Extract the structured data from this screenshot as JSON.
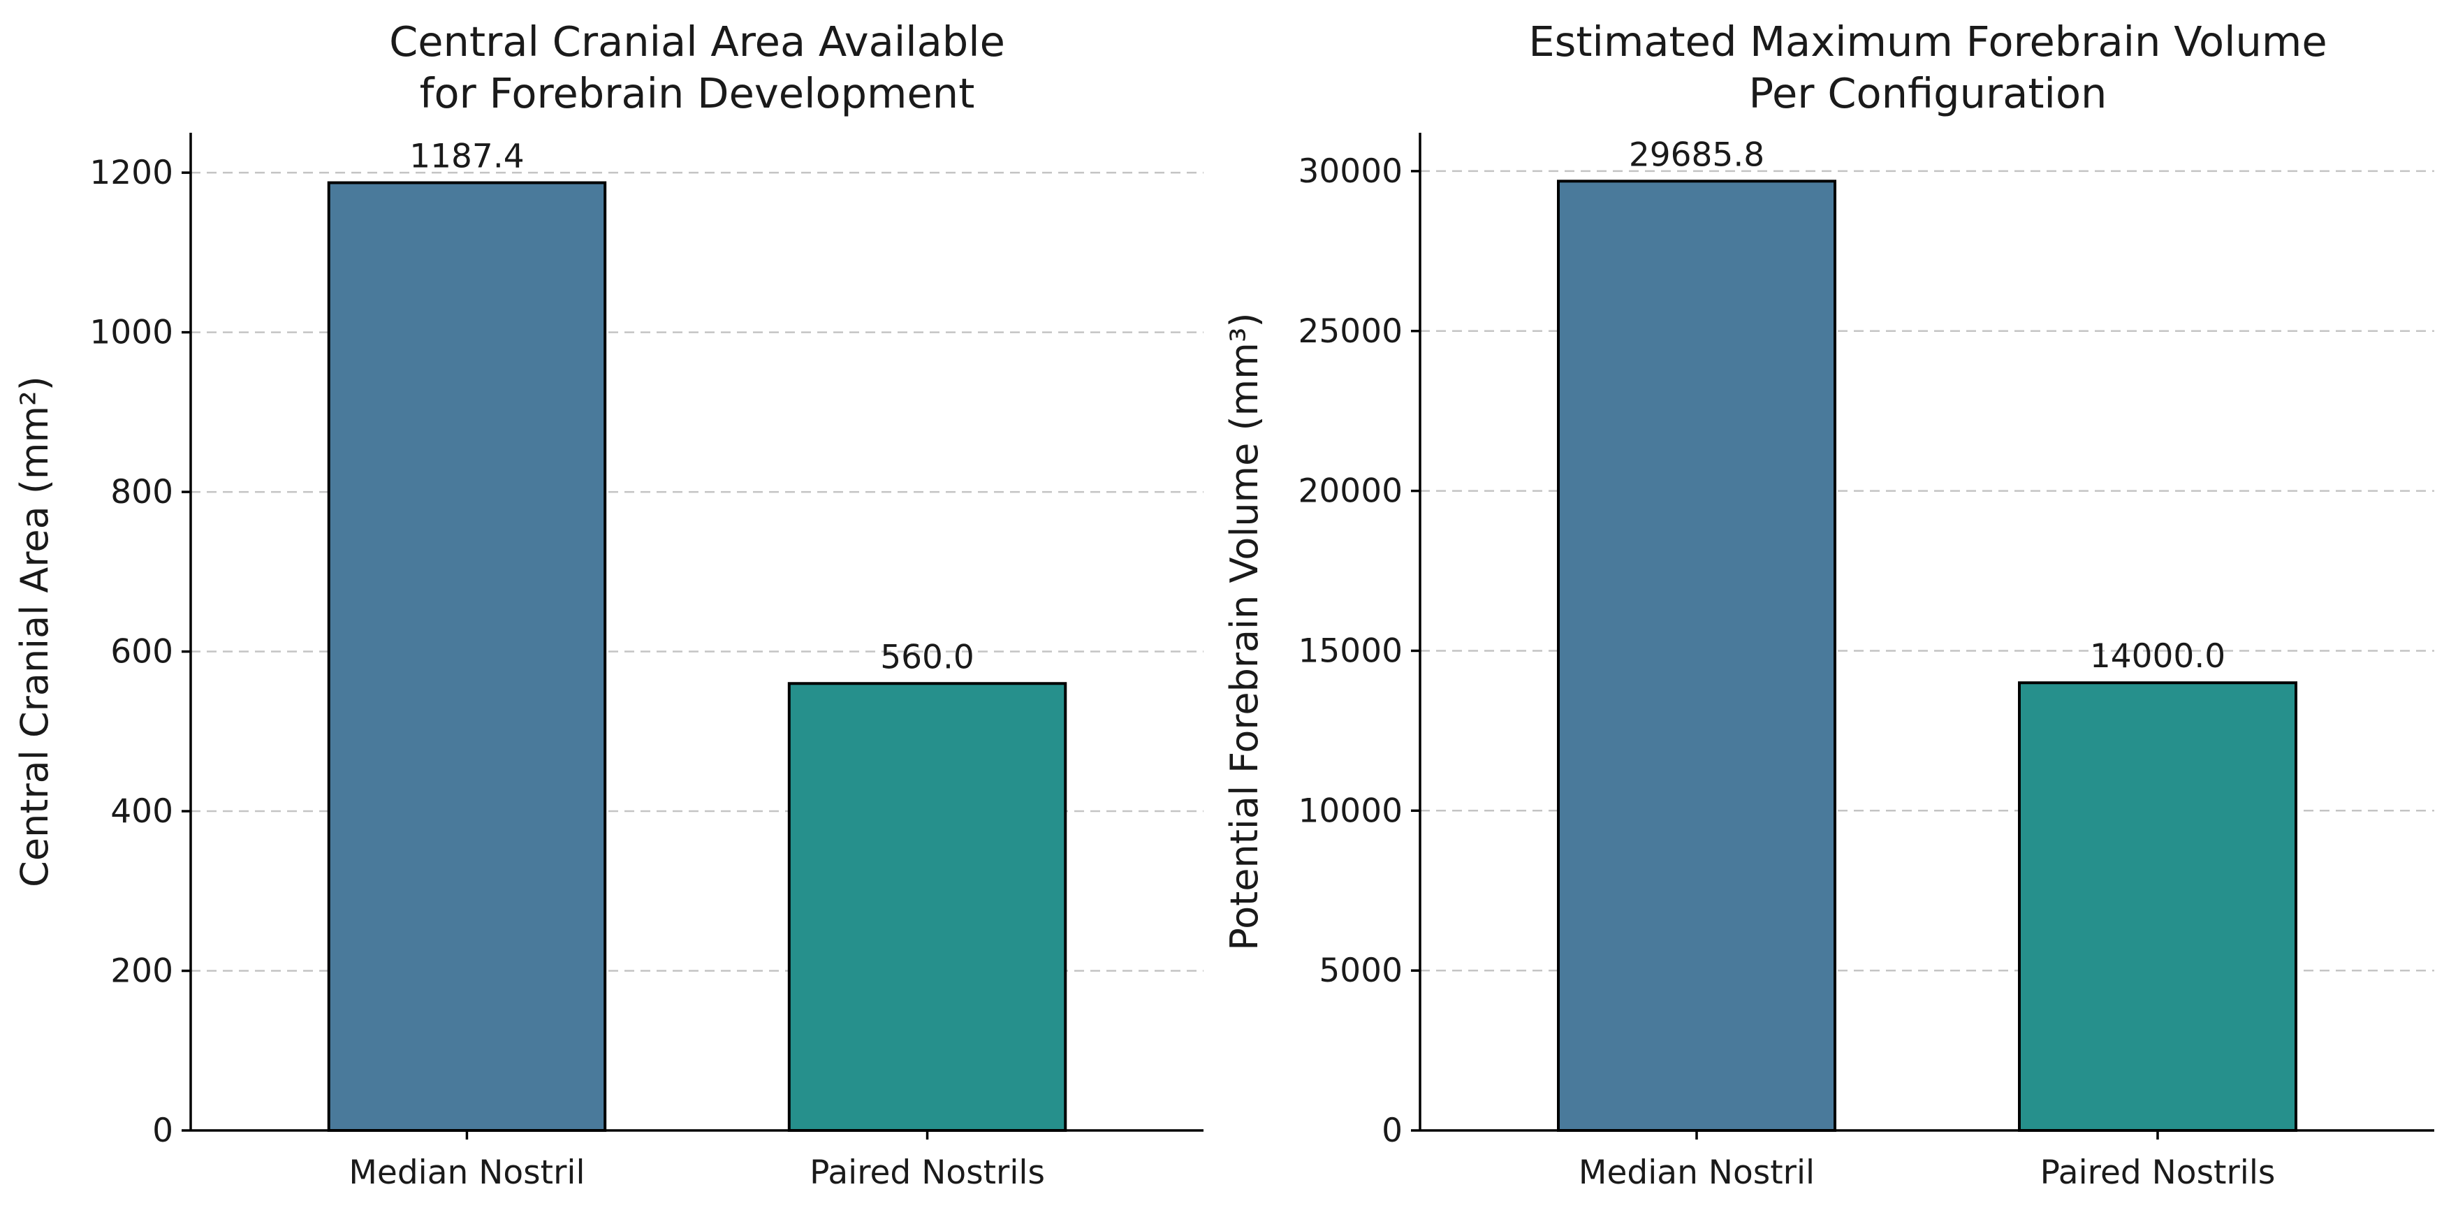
{
  "chart_data": [
    {
      "type": "bar",
      "title": [
        "Central Cranial Area Available",
        "for Forebrain Development"
      ],
      "xlabel": "",
      "ylabel": "Central Cranial Area (mm²)",
      "categories": [
        "Median Nostril",
        "Paired Nostrils"
      ],
      "values": [
        1187.4,
        560.0
      ],
      "value_labels": [
        "1187.4",
        "560.0"
      ],
      "colors": [
        "#4a7a9b",
        "#26908c"
      ],
      "ylim": [
        0,
        1250
      ],
      "yticks": [
        0,
        200,
        400,
        600,
        800,
        1000,
        1200
      ],
      "ytick_labels": [
        "0",
        "200",
        "400",
        "600",
        "800",
        "1000",
        "1200"
      ],
      "grid": "y-dashed",
      "legend": "none"
    },
    {
      "type": "bar",
      "title": [
        "Estimated Maximum Forebrain Volume",
        "Per Configuration"
      ],
      "xlabel": "",
      "ylabel": "Potential Forebrain Volume (mm³)",
      "categories": [
        "Median Nostril",
        "Paired Nostrils"
      ],
      "values": [
        29685.8,
        14000.0
      ],
      "value_labels": [
        "29685.8",
        "14000.0"
      ],
      "colors": [
        "#4a7a9b",
        "#26908c"
      ],
      "ylim": [
        0,
        31200
      ],
      "yticks": [
        0,
        5000,
        10000,
        15000,
        20000,
        25000,
        30000
      ],
      "ytick_labels": [
        "0",
        "5000",
        "10000",
        "15000",
        "20000",
        "25000",
        "30000"
      ],
      "grid": "y-dashed",
      "legend": "none"
    }
  ]
}
